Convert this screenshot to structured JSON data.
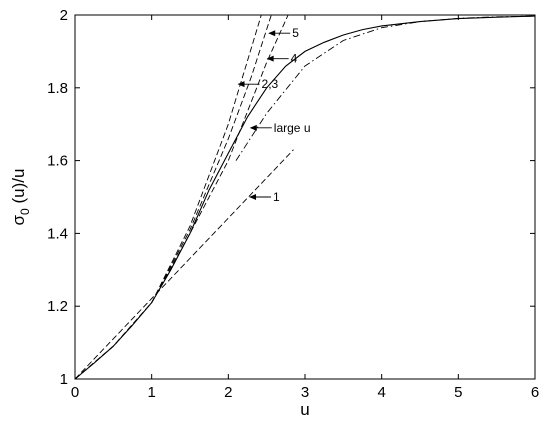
{
  "chart_data": {
    "type": "line",
    "title": "",
    "xlabel": "u",
    "ylabel_main": "σ",
    "ylabel_sub": "0",
    "ylabel_rest": " (u)/u",
    "xlim": [
      0,
      6
    ],
    "ylim": [
      1,
      2
    ],
    "xticks": [
      "0",
      "1",
      "2",
      "3",
      "4",
      "5",
      "6"
    ],
    "yticks": [
      "1",
      "1.2",
      "1.4",
      "1.6",
      "1.8",
      "2"
    ],
    "grid": false,
    "legend": "none",
    "series": [
      {
        "style": "solid",
        "x": [
          0,
          0.25,
          0.5,
          0.75,
          1.0,
          1.25,
          1.5,
          1.75,
          2.0,
          2.25,
          2.5,
          2.75,
          3.0,
          3.25,
          3.5,
          3.75,
          4.0,
          4.5,
          5.0,
          5.5,
          6.0
        ],
        "y": [
          1.0,
          1.044,
          1.09,
          1.148,
          1.21,
          1.3,
          1.4,
          1.52,
          1.62,
          1.72,
          1.8,
          1.86,
          1.9,
          1.925,
          1.945,
          1.96,
          1.97,
          1.982,
          1.99,
          1.994,
          1.997
        ]
      },
      {
        "style": "dashed",
        "name": "1",
        "x": [
          0,
          2.85
        ],
        "y": [
          1.0,
          1.63
        ]
      },
      {
        "style": "dashed",
        "name": "2,3",
        "x": [
          0,
          0.5,
          1.0,
          1.5,
          2.0,
          2.43
        ],
        "y": [
          1.0,
          1.09,
          1.21,
          1.42,
          1.7,
          2.0
        ]
      },
      {
        "style": "dashed",
        "name": "4",
        "x": [
          0,
          0.5,
          1.0,
          1.5,
          2.0,
          2.5,
          2.78
        ],
        "y": [
          1.0,
          1.09,
          1.21,
          1.4,
          1.6,
          1.87,
          2.0
        ]
      },
      {
        "style": "dashed",
        "name": "5",
        "x": [
          0,
          0.5,
          1.0,
          1.5,
          2.0,
          2.3,
          2.56
        ],
        "y": [
          1.0,
          1.09,
          1.21,
          1.41,
          1.66,
          1.83,
          2.0
        ]
      },
      {
        "style": "dashdot",
        "name": "large u",
        "x": [
          2.1,
          2.5,
          3.0,
          3.5,
          4.0,
          4.5,
          5.0,
          5.5,
          6.0
        ],
        "y": [
          1.6,
          1.73,
          1.86,
          1.93,
          1.965,
          1.982,
          1.991,
          1.995,
          1.997
        ]
      }
    ],
    "annotations": [
      {
        "text": "5",
        "arrow_x": 2.52,
        "arrow_y": 1.95
      },
      {
        "text": "4",
        "arrow_x": 2.5,
        "arrow_y": 1.88
      },
      {
        "text": "2,3",
        "arrow_x": 2.12,
        "arrow_y": 1.81
      },
      {
        "text": "large u",
        "arrow_x": 2.28,
        "arrow_y": 1.69
      },
      {
        "text": "1",
        "arrow_x": 2.27,
        "arrow_y": 1.5
      }
    ]
  }
}
